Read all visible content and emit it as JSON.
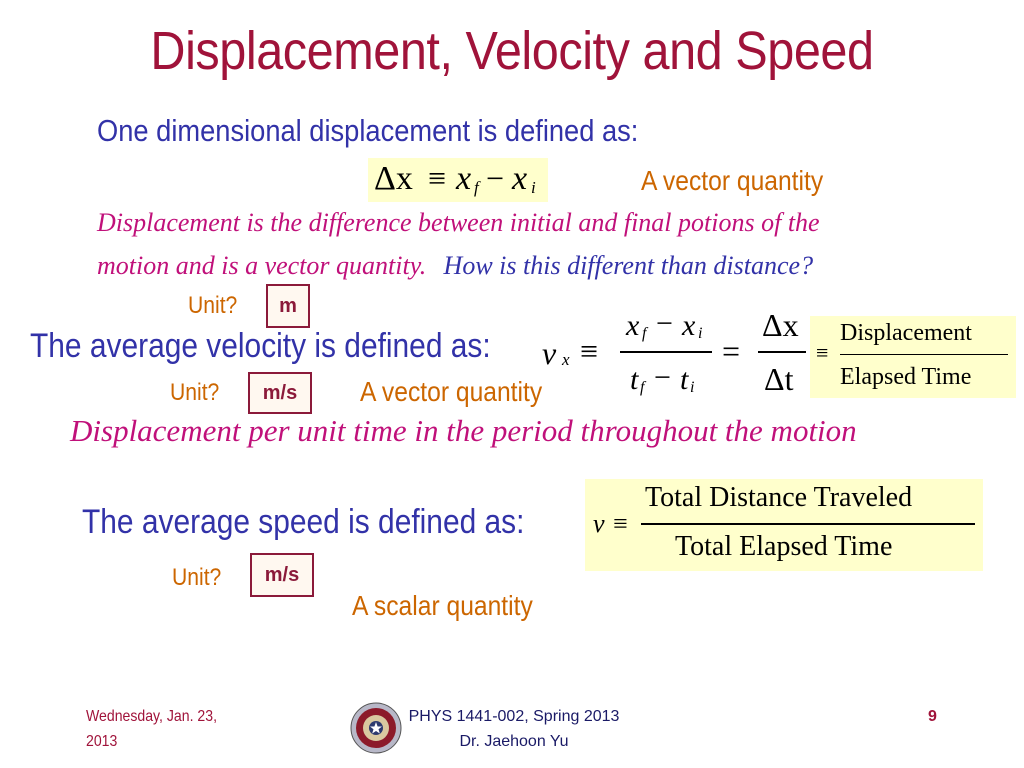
{
  "slide": {
    "title": "Displacement, Velocity and Speed",
    "displacement_intro": "One dimensional displacement is defined as:",
    "displacement_formula": {
      "lhs": "Δx",
      "equiv": "≡",
      "xf": "x",
      "f_sub": "f",
      "minus": "−",
      "xi": "x",
      "i_sub": "i"
    },
    "vector_label_1": "A vector quantity",
    "displacement_def_line1": "Displacement is the difference between initial and final potions of the",
    "displacement_def_line2a": "motion and is a vector quantity.",
    "displacement_def_line2b": "How is this different than distance?",
    "unit_q1": "Unit?",
    "unit_a1": "m",
    "velocity_intro": "The average velocity is defined as:",
    "velocity_formula": {
      "v": "v",
      "v_sub": "x",
      "equiv": "≡",
      "num_xf": "x",
      "num_f": "f",
      "num_minus": "−",
      "num_xi": "x",
      "num_i": "i",
      "den_tf": "t",
      "den_f": "f",
      "den_minus": "−",
      "den_ti": "t",
      "den_i": "i",
      "equals": "=",
      "dx": "Δx",
      "dt": "Δt",
      "equiv2": "≡",
      "word_num": "Displacement",
      "word_den": "Elapsed Time"
    },
    "unit_q2": "Unit?",
    "unit_a2": "m/s",
    "vector_label_2": "A vector quantity",
    "velocity_def": "Displacement per unit time in the period throughout the motion",
    "speed_intro": "The average speed is defined as:",
    "speed_formula": {
      "v": "v",
      "equiv": "≡",
      "num": "Total Distance Traveled",
      "den": "Total Elapsed Time"
    },
    "unit_q3": "Unit?",
    "unit_a3": "m/s",
    "scalar_label": "A scalar quantity"
  },
  "footer": {
    "date_line1": "Wednesday, Jan. 23,",
    "date_line2": "2013",
    "course_line1": "PHYS 1441-002, Spring 2013",
    "course_line2": "Dr. Jaehoon Yu",
    "page_number": "9"
  },
  "colors": {
    "title": "#a0133a",
    "body_blue": "#3232a8",
    "accent_orange": "#cc6600",
    "definition_magenta": "#c0107a",
    "formula_bg": "#ffffcc"
  }
}
